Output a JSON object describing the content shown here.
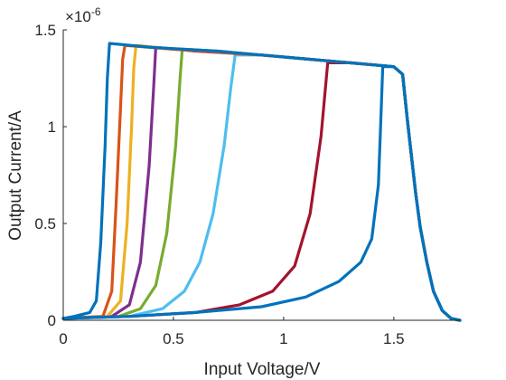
{
  "chart_data": {
    "type": "line",
    "xlabel": "Input Voltage/V",
    "ylabel": "Output Current/A",
    "xlim": [
      0,
      1.8
    ],
    "ylim": [
      0,
      1.5
    ],
    "y_exponent_base": "×10",
    "y_exponent_power": "-6",
    "x_ticks": [
      "0",
      "0.5",
      "1",
      "1.5"
    ],
    "y_ticks": [
      "0",
      "0.5",
      "1",
      "1.5"
    ],
    "x_tick_values": [
      0,
      0.5,
      1,
      1.5
    ],
    "y_tick_values": [
      0,
      0.5,
      1,
      1.5
    ],
    "grid": false,
    "series": [
      {
        "color": "#a2142f",
        "points": [
          [
            0,
            0.01
          ],
          [
            0.3,
            0.02
          ],
          [
            0.6,
            0.04
          ],
          [
            0.8,
            0.08
          ],
          [
            0.95,
            0.15
          ],
          [
            1.05,
            0.28
          ],
          [
            1.12,
            0.55
          ],
          [
            1.17,
            0.95
          ],
          [
            1.2,
            1.33
          ],
          [
            1.3,
            1.33
          ],
          [
            1.4,
            1.32
          ],
          [
            1.5,
            1.31
          ],
          [
            1.54,
            1.27
          ],
          [
            1.56,
            1.05
          ],
          [
            1.58,
            0.85
          ],
          [
            1.6,
            0.65
          ],
          [
            1.62,
            0.48
          ],
          [
            1.65,
            0.3
          ],
          [
            1.68,
            0.15
          ],
          [
            1.72,
            0.05
          ],
          [
            1.76,
            0.01
          ],
          [
            1.8,
            0.0
          ]
        ]
      },
      {
        "color": "#4dbeee",
        "points": [
          [
            0,
            0.01
          ],
          [
            0.3,
            0.02
          ],
          [
            0.45,
            0.06
          ],
          [
            0.55,
            0.15
          ],
          [
            0.62,
            0.3
          ],
          [
            0.68,
            0.55
          ],
          [
            0.73,
            0.9
          ],
          [
            0.76,
            1.2
          ],
          [
            0.78,
            1.37
          ],
          [
            0.9,
            1.37
          ],
          [
            1.1,
            1.35
          ],
          [
            1.3,
            1.33
          ],
          [
            1.5,
            1.31
          ],
          [
            1.54,
            1.27
          ],
          [
            1.56,
            1.05
          ],
          [
            1.58,
            0.85
          ],
          [
            1.6,
            0.65
          ],
          [
            1.62,
            0.48
          ],
          [
            1.65,
            0.3
          ],
          [
            1.68,
            0.15
          ],
          [
            1.72,
            0.05
          ],
          [
            1.76,
            0.01
          ],
          [
            1.8,
            0.0
          ]
        ]
      },
      {
        "color": "#77ac30",
        "points": [
          [
            0,
            0.01
          ],
          [
            0.25,
            0.02
          ],
          [
            0.35,
            0.06
          ],
          [
            0.42,
            0.18
          ],
          [
            0.47,
            0.45
          ],
          [
            0.51,
            0.9
          ],
          [
            0.53,
            1.25
          ],
          [
            0.54,
            1.4
          ],
          [
            0.7,
            1.39
          ],
          [
            0.9,
            1.37
          ],
          [
            1.1,
            1.35
          ],
          [
            1.3,
            1.33
          ],
          [
            1.5,
            1.31
          ],
          [
            1.54,
            1.27
          ],
          [
            1.56,
            1.05
          ],
          [
            1.58,
            0.85
          ],
          [
            1.6,
            0.65
          ],
          [
            1.62,
            0.48
          ],
          [
            1.65,
            0.3
          ],
          [
            1.68,
            0.15
          ],
          [
            1.72,
            0.05
          ],
          [
            1.76,
            0.01
          ],
          [
            1.8,
            0.0
          ]
        ]
      },
      {
        "color": "#7e2f8e",
        "points": [
          [
            0,
            0.01
          ],
          [
            0.22,
            0.02
          ],
          [
            0.3,
            0.08
          ],
          [
            0.35,
            0.3
          ],
          [
            0.39,
            0.8
          ],
          [
            0.41,
            1.2
          ],
          [
            0.42,
            1.41
          ],
          [
            0.6,
            1.39
          ],
          [
            0.9,
            1.37
          ],
          [
            1.1,
            1.35
          ],
          [
            1.3,
            1.33
          ],
          [
            1.5,
            1.31
          ],
          [
            1.54,
            1.27
          ],
          [
            1.56,
            1.05
          ],
          [
            1.58,
            0.85
          ],
          [
            1.6,
            0.65
          ],
          [
            1.62,
            0.48
          ],
          [
            1.65,
            0.3
          ],
          [
            1.68,
            0.15
          ],
          [
            1.72,
            0.05
          ],
          [
            1.76,
            0.01
          ],
          [
            1.8,
            0.0
          ]
        ]
      },
      {
        "color": "#edb120",
        "points": [
          [
            0,
            0.01
          ],
          [
            0.2,
            0.02
          ],
          [
            0.26,
            0.1
          ],
          [
            0.29,
            0.5
          ],
          [
            0.31,
            1.0
          ],
          [
            0.32,
            1.3
          ],
          [
            0.33,
            1.42
          ],
          [
            0.5,
            1.4
          ],
          [
            0.9,
            1.37
          ],
          [
            1.1,
            1.35
          ],
          [
            1.3,
            1.33
          ],
          [
            1.5,
            1.31
          ],
          [
            1.54,
            1.27
          ],
          [
            1.56,
            1.05
          ],
          [
            1.58,
            0.85
          ],
          [
            1.6,
            0.65
          ],
          [
            1.62,
            0.48
          ],
          [
            1.65,
            0.3
          ],
          [
            1.68,
            0.15
          ],
          [
            1.72,
            0.05
          ],
          [
            1.76,
            0.01
          ],
          [
            1.8,
            0.0
          ]
        ]
      },
      {
        "color": "#d95319",
        "points": [
          [
            0,
            0.01
          ],
          [
            0.18,
            0.02
          ],
          [
            0.22,
            0.15
          ],
          [
            0.24,
            0.6
          ],
          [
            0.26,
            1.1
          ],
          [
            0.27,
            1.35
          ],
          [
            0.28,
            1.42
          ],
          [
            0.5,
            1.4
          ],
          [
            0.9,
            1.37
          ],
          [
            1.1,
            1.35
          ],
          [
            1.3,
            1.33
          ],
          [
            1.5,
            1.31
          ],
          [
            1.54,
            1.27
          ],
          [
            1.56,
            1.05
          ],
          [
            1.58,
            0.85
          ],
          [
            1.6,
            0.65
          ],
          [
            1.62,
            0.48
          ],
          [
            1.65,
            0.3
          ],
          [
            1.68,
            0.15
          ],
          [
            1.72,
            0.05
          ],
          [
            1.76,
            0.01
          ],
          [
            1.8,
            0.0
          ]
        ]
      },
      {
        "color": "#0072bd",
        "points": [
          [
            0,
            0.01
          ],
          [
            0.05,
            0.02
          ],
          [
            0.12,
            0.04
          ],
          [
            0.15,
            0.1
          ],
          [
            0.17,
            0.4
          ],
          [
            0.19,
            0.9
          ],
          [
            0.2,
            1.25
          ],
          [
            0.21,
            1.43
          ],
          [
            0.4,
            1.41
          ],
          [
            0.7,
            1.39
          ],
          [
            0.9,
            1.37
          ],
          [
            1.1,
            1.35
          ],
          [
            1.3,
            1.33
          ],
          [
            1.5,
            1.31
          ],
          [
            1.54,
            1.27
          ],
          [
            1.56,
            1.05
          ],
          [
            1.58,
            0.85
          ],
          [
            1.6,
            0.65
          ],
          [
            1.62,
            0.48
          ],
          [
            1.65,
            0.3
          ],
          [
            1.68,
            0.15
          ],
          [
            1.72,
            0.05
          ],
          [
            1.76,
            0.01
          ],
          [
            1.8,
            0.0
          ]
        ]
      },
      {
        "color": "#0072bd",
        "points": [
          [
            0,
            0.01
          ],
          [
            0.3,
            0.02
          ],
          [
            0.6,
            0.04
          ],
          [
            0.9,
            0.07
          ],
          [
            1.1,
            0.12
          ],
          [
            1.25,
            0.2
          ],
          [
            1.35,
            0.3
          ],
          [
            1.4,
            0.42
          ],
          [
            1.43,
            0.7
          ],
          [
            1.44,
            1.0
          ],
          [
            1.45,
            1.31
          ],
          [
            1.5,
            1.31
          ],
          [
            1.54,
            1.27
          ],
          [
            1.56,
            1.05
          ],
          [
            1.58,
            0.85
          ],
          [
            1.6,
            0.65
          ],
          [
            1.62,
            0.48
          ],
          [
            1.65,
            0.3
          ],
          [
            1.68,
            0.15
          ],
          [
            1.72,
            0.05
          ],
          [
            1.76,
            0.01
          ],
          [
            1.8,
            0.0
          ]
        ]
      }
    ]
  }
}
